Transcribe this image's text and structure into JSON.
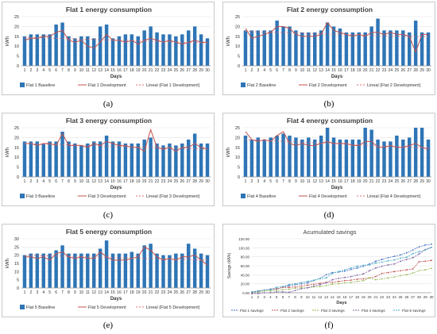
{
  "figure": {
    "captions": [
      "(a)",
      "(b)",
      "(c)",
      "(d)",
      "(e)",
      "(f)"
    ]
  },
  "chart_data": [
    {
      "type": "bar",
      "title": "Flat 1 energy consumption",
      "xlabel": "Days",
      "ylabel": "kWh",
      "ylim": [
        0,
        25
      ],
      "yticks": [
        0,
        5,
        10,
        15,
        20,
        25
      ],
      "categories": [
        "1",
        "2",
        "3",
        "4",
        "5",
        "6",
        "7",
        "8",
        "9",
        "10",
        "11",
        "12",
        "13",
        "14",
        "15",
        "16",
        "17",
        "18",
        "19",
        "20",
        "21",
        "22",
        "23",
        "24",
        "25",
        "26",
        "27",
        "28",
        "29",
        "30"
      ],
      "series": [
        {
          "name": "Flat 1 Baseline",
          "kind": "bar",
          "values": [
            15,
            16,
            16,
            16,
            16,
            21,
            22,
            15,
            14,
            15,
            15,
            14,
            20,
            21,
            14,
            15,
            16,
            16,
            15,
            18,
            20,
            17,
            16,
            16,
            15,
            16,
            18,
            20,
            16,
            14
          ]
        },
        {
          "name": "Flat 1 Development",
          "kind": "line",
          "values": [
            13,
            14,
            14,
            15,
            15,
            17,
            18,
            13,
            12,
            13,
            10,
            9,
            12,
            16,
            13,
            13,
            12,
            13,
            11,
            13,
            14,
            13,
            12,
            13,
            12,
            11,
            12,
            13,
            12,
            12
          ]
        },
        {
          "name": "Lineal (Flat 1 Development)",
          "kind": "trend",
          "values": [
            14.5,
            14.4,
            14.3,
            14.2,
            14.1,
            14.0,
            13.9,
            13.8,
            13.7,
            13.6,
            13.5,
            13.4,
            13.3,
            13.2,
            13.1,
            13.0,
            12.9,
            12.8,
            12.7,
            12.6,
            12.5,
            12.4,
            12.3,
            12.2,
            12.1,
            12.0,
            11.9,
            11.8,
            11.7,
            11.6
          ]
        }
      ],
      "colors": {
        "bar": "#2e75b6",
        "line": "#c0504d",
        "trend": "#e46c6c"
      }
    },
    {
      "type": "bar",
      "title": "Flat 2 energy consumption",
      "xlabel": "Days",
      "ylabel": "kWh",
      "ylim": [
        0,
        25
      ],
      "yticks": [
        0,
        5,
        10,
        15,
        20,
        25
      ],
      "categories": [
        "1",
        "2",
        "3",
        "4",
        "5",
        "6",
        "7",
        "8",
        "9",
        "10",
        "11",
        "12",
        "13",
        "14",
        "15",
        "16",
        "17",
        "18",
        "19",
        "20",
        "21",
        "22",
        "23",
        "24",
        "25",
        "26",
        "27",
        "28",
        "29",
        "30"
      ],
      "series": [
        {
          "name": "Flat 2 Baseline",
          "kind": "bar",
          "values": [
            18,
            18,
            18,
            18,
            18,
            23,
            20,
            20,
            18,
            17,
            17,
            17,
            18,
            22,
            20,
            19,
            17,
            17,
            17,
            17,
            20,
            24,
            18,
            18,
            18,
            18,
            17,
            23,
            17,
            17
          ]
        },
        {
          "name": "Flat 2 Development",
          "kind": "line",
          "values": [
            19,
            14,
            15,
            16,
            17,
            20,
            20,
            19,
            16,
            15,
            15,
            15,
            16,
            22,
            18,
            17,
            16,
            15,
            16,
            15,
            17,
            17,
            16,
            17,
            16,
            16,
            15,
            7,
            16,
            16
          ]
        },
        {
          "name": "Lineal (Flat 2 Development)",
          "kind": "trend",
          "values": [
            17.5,
            17.4,
            17.3,
            17.2,
            17.1,
            17.0,
            16.9,
            16.8,
            16.7,
            16.6,
            16.5,
            16.4,
            16.3,
            16.2,
            16.1,
            16.0,
            15.9,
            15.8,
            15.7,
            15.6,
            15.5,
            15.4,
            15.3,
            15.2,
            15.1,
            15.0,
            14.9,
            14.8,
            14.7,
            14.6
          ]
        }
      ],
      "colors": {
        "bar": "#2e75b6",
        "line": "#c0504d",
        "trend": "#e46c6c"
      }
    },
    {
      "type": "bar",
      "title": "Flat 3 energy consumption",
      "xlabel": "Days",
      "ylabel": "kWh",
      "ylim": [
        0,
        25
      ],
      "yticks": [
        0,
        5,
        10,
        15,
        20,
        25
      ],
      "categories": [
        "1",
        "2",
        "3",
        "4",
        "5",
        "6",
        "7",
        "8",
        "9",
        "10",
        "11",
        "12",
        "13",
        "14",
        "15",
        "16",
        "17",
        "18",
        "19",
        "20",
        "21",
        "22",
        "23",
        "24",
        "25",
        "26",
        "27",
        "28",
        "29",
        "30"
      ],
      "series": [
        {
          "name": "Flat 3 Baseline",
          "kind": "bar",
          "values": [
            18,
            18,
            18,
            17,
            18,
            18,
            23,
            18,
            17,
            16,
            17,
            18,
            18,
            21,
            18,
            18,
            17,
            17,
            17,
            19,
            20,
            17,
            16,
            17,
            16,
            17,
            19,
            22,
            17,
            17
          ]
        },
        {
          "name": "Flat 3 Development",
          "kind": "line",
          "values": [
            17,
            17,
            16,
            17,
            17,
            16,
            22,
            16,
            16,
            16,
            15,
            17,
            16,
            18,
            17,
            16,
            16,
            15,
            15,
            13,
            24,
            15,
            14,
            15,
            13,
            15,
            15,
            17,
            15,
            14
          ]
        },
        {
          "name": "Lineal (Flat 3 Development)",
          "kind": "trend",
          "values": [
            17.0,
            16.9,
            16.8,
            16.7,
            16.6,
            16.5,
            16.4,
            16.3,
            16.2,
            16.1,
            16.0,
            15.9,
            15.8,
            15.7,
            15.6,
            15.5,
            15.4,
            15.3,
            15.2,
            15.1,
            15.0,
            14.9,
            14.8,
            14.7,
            14.6,
            14.5,
            14.4,
            14.3,
            14.2,
            14.1
          ]
        }
      ],
      "colors": {
        "bar": "#2e75b6",
        "line": "#c0504d",
        "trend": "#e46c6c"
      }
    },
    {
      "type": "bar",
      "title": "Flat 4 energy consumption",
      "xlabel": "Days",
      "ylabel": "kWh",
      "ylim": [
        0,
        25
      ],
      "yticks": [
        0,
        5,
        10,
        15,
        20,
        25
      ],
      "categories": [
        "1",
        "2",
        "3",
        "4",
        "5",
        "6",
        "7",
        "8",
        "9",
        "10",
        "11",
        "12",
        "13",
        "14",
        "15",
        "16",
        "17",
        "18",
        "19",
        "20",
        "21",
        "22",
        "23",
        "24",
        "25",
        "26",
        "27",
        "28",
        "29",
        "30"
      ],
      "series": [
        {
          "name": "Flat 4 Baseline",
          "kind": "bar",
          "values": [
            21,
            19,
            20,
            19,
            20,
            21,
            22,
            21,
            20,
            19,
            20,
            19,
            21,
            25,
            20,
            19,
            19,
            19,
            19,
            25,
            24,
            19,
            18,
            18,
            21,
            19,
            20,
            25,
            25,
            19
          ]
        },
        {
          "name": "Flat 4 Development",
          "kind": "line",
          "values": [
            23,
            19,
            18,
            19,
            18,
            21,
            23,
            17,
            16,
            17,
            16,
            16,
            17,
            18,
            17,
            17,
            17,
            16,
            16,
            18,
            18,
            15,
            15,
            16,
            15,
            15,
            16,
            17,
            15,
            14
          ]
        },
        {
          "name": "Lineal (Flat 4 Development)",
          "kind": "trend",
          "values": [
            19.0,
            18.85,
            18.7,
            18.55,
            18.4,
            18.25,
            18.1,
            17.95,
            17.8,
            17.65,
            17.5,
            17.35,
            17.2,
            17.05,
            16.9,
            16.75,
            16.6,
            16.45,
            16.3,
            16.15,
            16.0,
            15.85,
            15.7,
            15.55,
            15.4,
            15.25,
            15.1,
            14.95,
            14.8,
            14.65
          ]
        }
      ],
      "colors": {
        "bar": "#2e75b6",
        "line": "#c0504d",
        "trend": "#e46c6c"
      }
    },
    {
      "type": "bar",
      "title": "Flat 5 energy consumption",
      "xlabel": "Days",
      "ylabel": "kWh",
      "ylim": [
        0,
        30
      ],
      "yticks": [
        0,
        5,
        10,
        15,
        20,
        25,
        30
      ],
      "categories": [
        "1",
        "2",
        "3",
        "4",
        "5",
        "6",
        "7",
        "8",
        "9",
        "10",
        "11",
        "12",
        "13",
        "14",
        "15",
        "16",
        "17",
        "18",
        "19",
        "20",
        "21",
        "22",
        "23",
        "24",
        "25",
        "26",
        "27",
        "28",
        "29",
        "30"
      ],
      "series": [
        {
          "name": "Flat 5 Baseline",
          "kind": "bar",
          "values": [
            20,
            21,
            21,
            21,
            21,
            23,
            26,
            21,
            21,
            21,
            21,
            21,
            24,
            29,
            21,
            21,
            21,
            22,
            21,
            26,
            27,
            21,
            20,
            20,
            21,
            21,
            27,
            24,
            21,
            20
          ]
        },
        {
          "name": "Flat 5 Development",
          "kind": "line",
          "values": [
            19,
            19,
            18,
            19,
            17,
            21,
            22,
            19,
            18,
            19,
            18,
            18,
            22,
            19,
            17,
            17,
            17,
            18,
            19,
            25,
            23,
            19,
            17,
            18,
            17,
            19,
            19,
            20,
            17,
            14
          ]
        },
        {
          "name": "Lineal (Flat 5 Development)",
          "kind": "trend",
          "values": [
            20.0,
            19.9,
            19.8,
            19.7,
            19.6,
            19.5,
            19.4,
            19.3,
            19.2,
            19.1,
            19.0,
            18.9,
            18.8,
            18.7,
            18.6,
            18.5,
            18.4,
            18.3,
            18.2,
            18.1,
            18.0,
            17.9,
            17.8,
            17.7,
            17.6,
            17.5,
            17.4,
            17.3,
            17.2,
            17.1
          ]
        }
      ],
      "colors": {
        "bar": "#2e75b6",
        "line": "#c0504d",
        "trend": "#e46c6c"
      }
    },
    {
      "type": "line",
      "title": "Acumulated savings",
      "xlabel": "Days",
      "ylabel": "Savings (kWh)",
      "ylim": [
        0,
        120
      ],
      "yticks": [
        0,
        20,
        40,
        60,
        80,
        100,
        120
      ],
      "ytick_labels": [
        "0.00",
        "20.00",
        "40.00",
        "60.00",
        "80.00",
        "100.00",
        "120.00"
      ],
      "categories": [
        "1",
        "2",
        "3",
        "4",
        "5",
        "6",
        "7",
        "8",
        "9",
        "10",
        "11",
        "12",
        "13",
        "14",
        "15",
        "16",
        "17",
        "18",
        "19",
        "20",
        "21",
        "22",
        "23",
        "24",
        "25",
        "26",
        "27",
        "28",
        "29",
        "30"
      ],
      "series": [
        {
          "name": "Flat 1 savings",
          "color": "#4472c4",
          "values": [
            2,
            4,
            6,
            7,
            8,
            12,
            16,
            18,
            20,
            22,
            27,
            32,
            40,
            45,
            46,
            48,
            52,
            55,
            59,
            64,
            70,
            74,
            78,
            81,
            84,
            89,
            95,
            102,
            106,
            108
          ]
        },
        {
          "name": "Flat 2 savings",
          "color": "#c0504d",
          "values": [
            -1,
            3,
            6,
            8,
            9,
            12,
            12,
            13,
            15,
            17,
            19,
            21,
            23,
            23,
            25,
            27,
            28,
            30,
            31,
            33,
            36,
            43,
            45,
            47,
            49,
            51,
            53,
            69,
            70,
            72
          ]
        },
        {
          "name": "Flat 3 savings",
          "color": "#9bbb59",
          "values": [
            1,
            2,
            4,
            4,
            5,
            7,
            8,
            10,
            11,
            11,
            13,
            14,
            16,
            19,
            20,
            22,
            23,
            25,
            27,
            33,
            29,
            31,
            33,
            35,
            38,
            40,
            44,
            49,
            51,
            54
          ]
        },
        {
          "name": "Flat 4 savings",
          "color": "#8064a2",
          "values": [
            -2,
            -2,
            0,
            0,
            2,
            2,
            1,
            5,
            9,
            11,
            15,
            18,
            22,
            29,
            32,
            34,
            36,
            39,
            42,
            49,
            55,
            59,
            62,
            64,
            70,
            74,
            78,
            86,
            96,
            101
          ]
        },
        {
          "name": "Flat 5 savings",
          "color": "#4bacc6",
          "values": [
            1,
            3,
            6,
            8,
            12,
            14,
            18,
            20,
            23,
            25,
            28,
            31,
            33,
            43,
            47,
            51,
            55,
            59,
            61,
            62,
            66,
            68,
            71,
            73,
            77,
            79,
            87,
            91,
            95,
            101
          ]
        }
      ]
    }
  ]
}
